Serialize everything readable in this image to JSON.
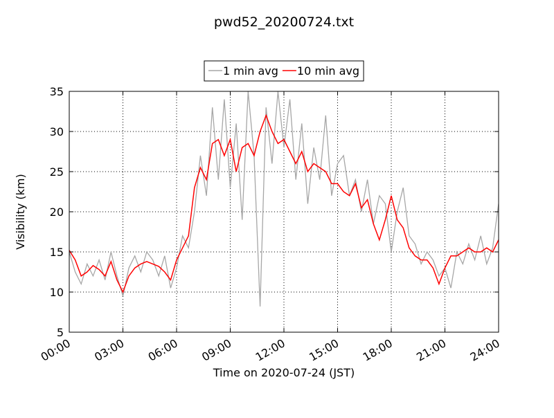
{
  "chart_data": {
    "type": "line",
    "title": "pwd52_20200724.txt",
    "xlabel": "Time on 2020-07-24 (JST)",
    "ylabel": "Visibility (km)",
    "x": [
      "00:00",
      "00:20",
      "00:40",
      "01:00",
      "01:20",
      "01:40",
      "02:00",
      "02:20",
      "02:40",
      "03:00",
      "03:20",
      "03:40",
      "04:00",
      "04:20",
      "04:40",
      "05:00",
      "05:20",
      "05:40",
      "06:00",
      "06:20",
      "06:40",
      "07:00",
      "07:20",
      "07:40",
      "08:00",
      "08:20",
      "08:40",
      "09:00",
      "09:20",
      "09:40",
      "10:00",
      "10:20",
      "10:40",
      "11:00",
      "11:20",
      "11:40",
      "12:00",
      "12:20",
      "12:40",
      "13:00",
      "13:20",
      "13:40",
      "14:00",
      "14:20",
      "14:40",
      "15:00",
      "15:20",
      "15:40",
      "16:00",
      "16:20",
      "16:40",
      "17:00",
      "17:20",
      "17:40",
      "18:00",
      "18:20",
      "18:40",
      "19:00",
      "19:20",
      "19:40",
      "20:00",
      "20:20",
      "20:40",
      "21:00",
      "21:20",
      "21:40",
      "22:00",
      "22:20",
      "22:40",
      "23:00",
      "23:20",
      "23:40",
      "24:00"
    ],
    "series": [
      {
        "name": "1 min avg",
        "color": "#a6a6a6",
        "values": [
          15,
          12.5,
          11,
          13.5,
          12,
          14,
          11.5,
          15,
          12,
          9.5,
          13,
          14.5,
          12.5,
          15,
          14,
          12,
          14.5,
          10.5,
          13,
          17,
          15.5,
          20,
          27,
          22,
          33,
          24,
          34,
          23,
          31,
          19,
          35,
          27,
          8.2,
          33,
          26,
          35,
          28,
          34,
          24,
          31,
          21,
          28,
          24,
          32,
          22,
          26,
          27,
          22,
          24,
          20,
          24,
          18.5,
          22,
          21,
          15,
          20,
          23,
          17,
          16,
          13.5,
          15,
          14,
          12,
          13,
          10.5,
          15,
          13.5,
          16,
          14,
          17,
          13.5,
          15.5,
          21
        ]
      },
      {
        "name": "10 min avg",
        "color": "#ff0000",
        "values": [
          15.2,
          14,
          12,
          12.5,
          13.3,
          12.8,
          12,
          13.8,
          11.5,
          10,
          12,
          13,
          13.5,
          13.8,
          13.5,
          13.2,
          12.5,
          11.5,
          14,
          15.5,
          17,
          23,
          25.5,
          24,
          28.5,
          29,
          27,
          29,
          25,
          28,
          28.5,
          27,
          30,
          32,
          30,
          28.5,
          29,
          27.5,
          26,
          27.5,
          25,
          26,
          25.5,
          25,
          23.5,
          23.5,
          22.5,
          22,
          23.5,
          20.5,
          21.5,
          18.5,
          16.5,
          19,
          22,
          19,
          18,
          15.5,
          14.5,
          14,
          14,
          13,
          11,
          13,
          14.5,
          14.5,
          15,
          15.5,
          15,
          15,
          15.5,
          15,
          16.5
        ]
      }
    ],
    "xlim": [
      "00:00",
      "24:00"
    ],
    "xticks": [
      "00:00",
      "03:00",
      "06:00",
      "09:00",
      "12:00",
      "15:00",
      "18:00",
      "21:00",
      "24:00"
    ],
    "ylim": [
      5,
      35
    ],
    "yticks": [
      5,
      10,
      15,
      20,
      25,
      30,
      35
    ],
    "grid": true,
    "legend": "top"
  }
}
